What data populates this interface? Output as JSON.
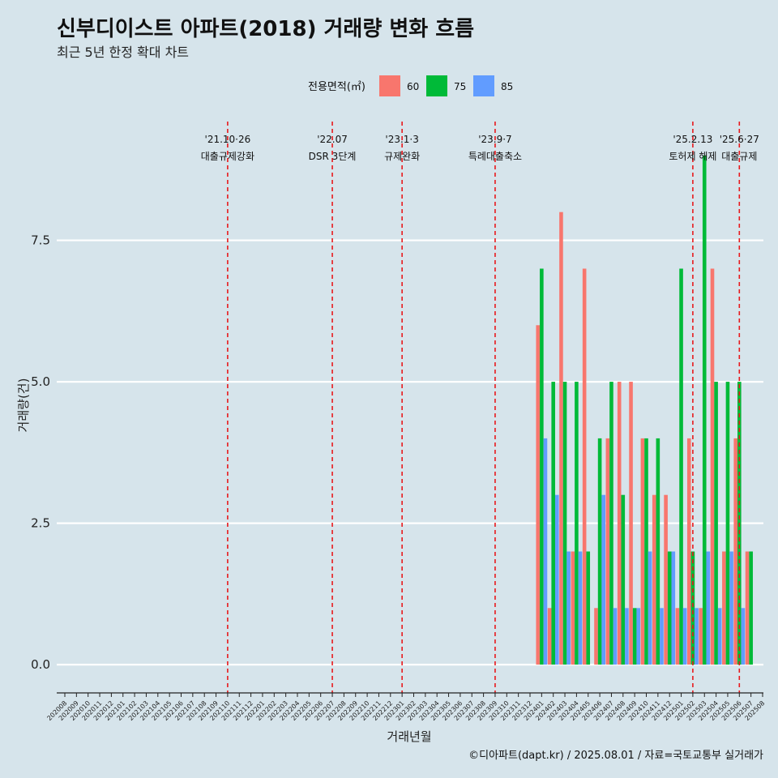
{
  "chart_data": {
    "type": "bar",
    "title": "신부디이스트 아파트(2018) 거래량 변화 흐름",
    "subtitle": "최근 5년 한정 확대 차트",
    "xlabel": "거래년월",
    "ylabel": "거래량(건)",
    "caption": "©디아파트(dapt.kr) / 2025.08.01 / 자료=국토교통부 실거래가",
    "legend_title": "전용면적(㎡)",
    "legend_position": "top",
    "grid": "horizontal",
    "ylim": [
      -0.5,
      9.6
    ],
    "yticks": [
      0.0,
      2.5,
      5.0,
      7.5
    ],
    "ytick_labels": [
      "0.0",
      "2.5",
      "5.0",
      "7.5"
    ],
    "categories": [
      "202008",
      "202009",
      "202010",
      "202011",
      "202012",
      "202101",
      "202102",
      "202103",
      "202104",
      "202105",
      "202106",
      "202107",
      "202108",
      "202109",
      "202110",
      "202111",
      "202112",
      "202201",
      "202202",
      "202203",
      "202204",
      "202205",
      "202206",
      "202207",
      "202208",
      "202209",
      "202210",
      "202211",
      "202212",
      "202301",
      "202302",
      "202303",
      "202304",
      "202305",
      "202306",
      "202307",
      "202308",
      "202309",
      "202310",
      "202311",
      "202312",
      "202401",
      "202402",
      "202403",
      "202404",
      "202405",
      "202406",
      "202407",
      "202408",
      "202409",
      "202410",
      "202411",
      "202412",
      "202501",
      "202502",
      "202503",
      "202504",
      "202505",
      "202506",
      "202507",
      "202508"
    ],
    "series": [
      {
        "name": "60",
        "color": "#f8766d",
        "values": {
          "202401": 6,
          "202402": 1,
          "202403": 8,
          "202404": 2,
          "202405": 7,
          "202406": 1,
          "202407": 4,
          "202408": 5,
          "202409": 5,
          "202410": 4,
          "202411": 3,
          "202412": 3,
          "202501": 1,
          "202502": 4,
          "202503": 1,
          "202504": 7,
          "202505": 2,
          "202506": 4,
          "202507": 2
        }
      },
      {
        "name": "75",
        "color": "#00ba38",
        "values": {
          "202401": 7,
          "202402": 5,
          "202403": 5,
          "202404": 5,
          "202405": 2,
          "202406": 4,
          "202407": 5,
          "202408": 3,
          "202409": 1,
          "202410": 4,
          "202411": 4,
          "202412": 2,
          "202501": 7,
          "202502": 2,
          "202503": 9,
          "202504": 5,
          "202505": 5,
          "202506": 5,
          "202507": 2
        }
      },
      {
        "name": "85",
        "color": "#619cff",
        "values": {
          "202401": 4,
          "202402": 3,
          "202403": 2,
          "202404": 2,
          "202406": 3,
          "202407": 1,
          "202408": 1,
          "202409": 1,
          "202410": 2,
          "202411": 1,
          "202412": 2,
          "202501": 1,
          "202502": 1,
          "202503": 2,
          "202504": 1,
          "202505": 2,
          "202506": 1
        }
      }
    ],
    "annotations": [
      {
        "x": "202110",
        "line1": "'21.10·26",
        "line2": "대출규제강화"
      },
      {
        "x": "202207",
        "line1": "'22.07",
        "line2": "DSR 3단계"
      },
      {
        "x": "202301",
        "line1": "'23.1·3",
        "line2": "규제완화"
      },
      {
        "x": "202309",
        "line1": "'23.9·7",
        "line2": "특례대출축소"
      },
      {
        "x": "202502",
        "line1": "'25.2.13",
        "line2": "토허제 해제"
      },
      {
        "x": "202506",
        "line1": "'25.6·27",
        "line2": "대출규제"
      }
    ],
    "reference_line_color": "#e8191c"
  }
}
